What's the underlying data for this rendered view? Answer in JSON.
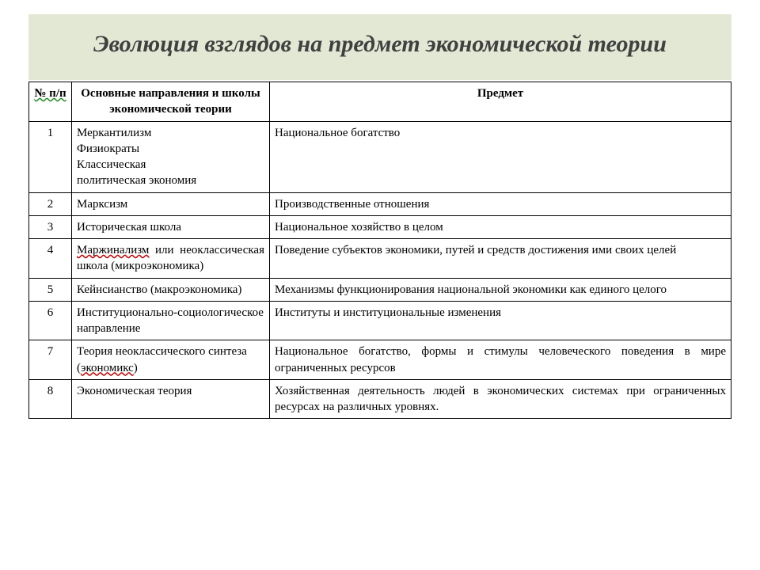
{
  "title": "Эволюция взглядов на предмет экономической теории",
  "columns": [
    "№ п/п",
    "Основные направления  и школы экономической теории",
    "Предмет"
  ],
  "rows": [
    {
      "n": "1",
      "school_html": "Меркантилизм<br>Физиократы<br>Классическая<br>политическая экономия",
      "subject": "Национальное богатство"
    },
    {
      "n": "2",
      "school_html": "Марксизм",
      "subject": "Производственные отношения"
    },
    {
      "n": "3",
      "school_html": "Историческая школа",
      "subject": "Национальное хозяйство в целом"
    },
    {
      "n": "4",
      "school_html": "<span class=\"squiggle\">Маржинализм</span> или неоклассическая школа (микроэкономика)",
      "school_justify": true,
      "subject": "Поведение субъектов экономики, путей и средств достижения ими своих целей",
      "subject_justify": true
    },
    {
      "n": "5",
      "school_html": "Кейнсианство (макроэкономика)",
      "subject": "Механизмы функционирования национальной экономики как единого целого",
      "subject_justify": true
    },
    {
      "n": "6",
      "school_html": "Институционально-социологическое направление",
      "subject": "Институты и институциональные изменения"
    },
    {
      "n": "7",
      "school_html": "Теория неоклассического синтеза (<span class=\"squiggle\">экономикс</span>)",
      "subject": "Национальное богатство, формы и стимулы человеческого поведения в мире ограниченных ресурсов",
      "subject_justify": true
    },
    {
      "n": "8",
      "school_html": "Экономическая теория",
      "subject": "Хозяйственная деятельность людей в экономических системах при ограниченных ресурсах на различных уровнях.",
      "subject_justify": true
    }
  ],
  "col_header_squiggle": {
    "0": true
  }
}
